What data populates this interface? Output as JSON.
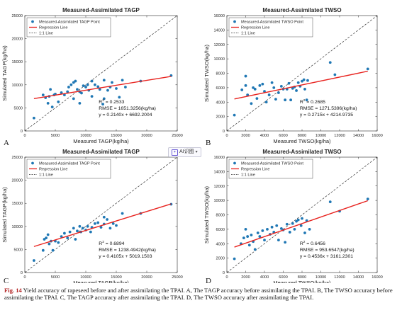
{
  "figure": {
    "panels": [
      {
        "letter": "A",
        "title": "Measured-Assimilated TAGP",
        "xlabel": "Measured TAGP(kg/ha)",
        "ylabel": "Simulated TAGP(kg/ha)",
        "legend": [
          "Measured-Assimilated TAGP Point",
          "Regression Line",
          "1:1 Line"
        ],
        "r2_prefix": "R",
        "r2_sup": "2",
        "r2_value": " = 0.2533",
        "rmse": "RMSE = 1651.3256(kg/ha)",
        "equation": "y = 0.2140x + 6692.2004"
      },
      {
        "letter": "B",
        "title": "Measured-Assimilated TWSO",
        "xlabel": "Measured TWSO(kg/ha)",
        "ylabel": "Simulated TWSO(kg/ha)",
        "legend": [
          "Measured-Assimilated TWSO Point",
          "Regression Line",
          "1:1 Line"
        ],
        "r2_prefix": "R",
        "r2_sup": "2",
        "r2_value": " = 0.2685",
        "rmse": "RMSE = 1271.5396(kg/ha)",
        "equation": "y = 0.2715x + 4214.9735"
      },
      {
        "letter": "C",
        "title": "Measured-Assimilated TAGP",
        "xlabel": "Measured TAGP(kg/ha)",
        "ylabel": "Simulated TAGP(kg/ha)",
        "legend": [
          "Measured-Assimilated TAGP Point",
          "Regression Line",
          "1:1 Line"
        ],
        "r2_prefix": "R",
        "r2_sup": "2",
        "r2_value": " = 0.6894",
        "rmse": "RMSE = 1238.4942(kg/ha)",
        "equation": "y = 0.4105x + 5019.1503"
      },
      {
        "letter": "D",
        "title": "Measured-Assimilated TWSO",
        "xlabel": "Measured TWSO(kg/ha)",
        "ylabel": "Simulated TWSO(kg/ha)",
        "legend": [
          "Measured-Assimilated TWSO Point",
          "Regression Line",
          "1:1 Line"
        ],
        "r2_prefix": "R",
        "r2_sup": "2",
        "r2_value": " = 0.6456",
        "rmse": "RMSE = 953.6547(kg/ha)",
        "equation": "y = 0.4536x + 3161.2301"
      }
    ]
  },
  "chart_data": [
    {
      "type": "scatter",
      "title": "Measured-Assimilated TAGP",
      "xlabel": "Measured TAGP(kg/ha)",
      "ylabel": "Simulated TAGP(kg/ha)",
      "xlim": [
        0,
        25000
      ],
      "ylim": [
        0,
        25000
      ],
      "xticks": [
        0,
        5000,
        10000,
        15000,
        20000,
        25000
      ],
      "yticks": [
        0,
        5000,
        10000,
        15000,
        20000,
        25000
      ],
      "regression": {
        "slope": 0.214,
        "intercept": 6692.2004,
        "x_range": [
          1500,
          24000
        ],
        "color": "#e8231f"
      },
      "one_to_one": true,
      "point_color": "#1f77b4",
      "points": [
        [
          1500,
          2800
        ],
        [
          3000,
          7800
        ],
        [
          3400,
          7200
        ],
        [
          3800,
          6000
        ],
        [
          4000,
          7500
        ],
        [
          4200,
          9000
        ],
        [
          4500,
          5200
        ],
        [
          4800,
          7800
        ],
        [
          5000,
          8000
        ],
        [
          5500,
          6300
        ],
        [
          6000,
          8300
        ],
        [
          6500,
          7800
        ],
        [
          7000,
          8500
        ],
        [
          7200,
          9500
        ],
        [
          7600,
          10000
        ],
        [
          8000,
          10500
        ],
        [
          8000,
          7000
        ],
        [
          8300,
          10800
        ],
        [
          8600,
          9000
        ],
        [
          9000,
          6000
        ],
        [
          9000,
          8500
        ],
        [
          9300,
          8200
        ],
        [
          9600,
          9800
        ],
        [
          10000,
          9500
        ],
        [
          10300,
          10000
        ],
        [
          10500,
          8800
        ],
        [
          11000,
          7500
        ],
        [
          11000,
          10800
        ],
        [
          11500,
          10000
        ],
        [
          12000,
          9600
        ],
        [
          12300,
          9000
        ],
        [
          12800,
          5800
        ],
        [
          13000,
          11000
        ],
        [
          13000,
          7000
        ],
        [
          13600,
          8800
        ],
        [
          14000,
          9500
        ],
        [
          14300,
          10500
        ],
        [
          15000,
          9200
        ],
        [
          15500,
          7300
        ],
        [
          16000,
          11000
        ],
        [
          16500,
          9500
        ],
        [
          19000,
          10800
        ],
        [
          24000,
          12000
        ]
      ]
    },
    {
      "type": "scatter",
      "title": "Measured-Assimilated TWSO",
      "xlabel": "Measured TWSO(kg/ha)",
      "ylabel": "Simulated TWSO(kg/ha)",
      "xlim": [
        0,
        16000
      ],
      "ylim": [
        0,
        16000
      ],
      "xticks": [
        0,
        2000,
        4000,
        6000,
        8000,
        10000,
        12000,
        14000,
        16000
      ],
      "yticks": [
        0,
        2000,
        4000,
        6000,
        8000,
        10000,
        12000,
        14000,
        16000
      ],
      "regression": {
        "slope": 0.2715,
        "intercept": 4214.9735,
        "x_range": [
          800,
          15000
        ],
        "color": "#e8231f"
      },
      "one_to_one": true,
      "point_color": "#1f77b4",
      "points": [
        [
          800,
          2200
        ],
        [
          1600,
          5700
        ],
        [
          2000,
          7600
        ],
        [
          2000,
          6300
        ],
        [
          2200,
          5000
        ],
        [
          2600,
          3800
        ],
        [
          2800,
          6000
        ],
        [
          3000,
          5800
        ],
        [
          3200,
          4500
        ],
        [
          3500,
          6300
        ],
        [
          3800,
          6500
        ],
        [
          4000,
          5500
        ],
        [
          4200,
          4000
        ],
        [
          4500,
          5000
        ],
        [
          4800,
          6700
        ],
        [
          5000,
          6000
        ],
        [
          5200,
          4400
        ],
        [
          5500,
          5300
        ],
        [
          5800,
          6200
        ],
        [
          6000,
          5800
        ],
        [
          6200,
          4300
        ],
        [
          6400,
          5800
        ],
        [
          6600,
          6600
        ],
        [
          6800,
          4300
        ],
        [
          7000,
          5900
        ],
        [
          7200,
          6100
        ],
        [
          7400,
          5600
        ],
        [
          7600,
          6700
        ],
        [
          7800,
          6200
        ],
        [
          8000,
          6900
        ],
        [
          8200,
          7100
        ],
        [
          8300,
          5800
        ],
        [
          8500,
          4300
        ],
        [
          8600,
          7000
        ],
        [
          11000,
          9500
        ],
        [
          11500,
          7800
        ],
        [
          15000,
          8600
        ]
      ]
    },
    {
      "type": "scatter",
      "title": "Measured-Assimilated TAGP",
      "xlabel": "Measured TAGP(kg/ha)",
      "ylabel": "Simulated TAGP(kg/ha)",
      "xlim": [
        0,
        25000
      ],
      "ylim": [
        0,
        25000
      ],
      "xticks": [
        0,
        5000,
        10000,
        15000,
        20000,
        25000
      ],
      "yticks": [
        0,
        5000,
        10000,
        15000,
        20000,
        25000
      ],
      "regression": {
        "slope": 0.4105,
        "intercept": 5019.1503,
        "x_range": [
          1500,
          24000
        ],
        "color": "#e8231f"
      },
      "one_to_one": true,
      "point_color": "#1f77b4",
      "points": [
        [
          1500,
          2600
        ],
        [
          3000,
          4800
        ],
        [
          3200,
          7200
        ],
        [
          3500,
          7500
        ],
        [
          3800,
          8200
        ],
        [
          4000,
          6200
        ],
        [
          4300,
          6800
        ],
        [
          4600,
          4800
        ],
        [
          5000,
          6800
        ],
        [
          5500,
          6500
        ],
        [
          6000,
          7800
        ],
        [
          6500,
          8500
        ],
        [
          7000,
          7500
        ],
        [
          7400,
          8800
        ],
        [
          8000,
          9600
        ],
        [
          8300,
          7200
        ],
        [
          8600,
          9000
        ],
        [
          9000,
          10000
        ],
        [
          9200,
          8800
        ],
        [
          9500,
          9600
        ],
        [
          10000,
          9200
        ],
        [
          10300,
          10000
        ],
        [
          10800,
          8800
        ],
        [
          11000,
          9800
        ],
        [
          11500,
          10600
        ],
        [
          12000,
          10800
        ],
        [
          12500,
          9800
        ],
        [
          13000,
          12000
        ],
        [
          13000,
          10500
        ],
        [
          13500,
          11500
        ],
        [
          14000,
          9600
        ],
        [
          14500,
          10600
        ],
        [
          15000,
          10200
        ],
        [
          16000,
          12800
        ],
        [
          19000,
          12800
        ],
        [
          24000,
          14800
        ]
      ]
    },
    {
      "type": "scatter",
      "title": "Measured-Assimilated TWSO",
      "xlabel": "Measured TWSO(kg/ha)",
      "ylabel": "Simulated TWSO(kg/ha)",
      "xlim": [
        0,
        16000
      ],
      "ylim": [
        0,
        16000
      ],
      "xticks": [
        0,
        2000,
        4000,
        6000,
        8000,
        10000,
        12000,
        14000,
        16000
      ],
      "yticks": [
        0,
        2000,
        4000,
        6000,
        8000,
        10000,
        12000,
        14000,
        16000
      ],
      "regression": {
        "slope": 0.4536,
        "intercept": 3161.2301,
        "x_range": [
          800,
          15000
        ],
        "color": "#e8231f"
      },
      "one_to_one": true,
      "point_color": "#1f77b4",
      "points": [
        [
          800,
          1900
        ],
        [
          1500,
          4000
        ],
        [
          1800,
          4800
        ],
        [
          2000,
          6000
        ],
        [
          2200,
          5000
        ],
        [
          2400,
          3800
        ],
        [
          2600,
          5200
        ],
        [
          2800,
          4300
        ],
        [
          3000,
          3200
        ],
        [
          3300,
          5500
        ],
        [
          3500,
          5000
        ],
        [
          3800,
          5800
        ],
        [
          4000,
          4500
        ],
        [
          4300,
          6000
        ],
        [
          4600,
          5300
        ],
        [
          4800,
          6300
        ],
        [
          5000,
          5600
        ],
        [
          5300,
          6500
        ],
        [
          5500,
          4500
        ],
        [
          5800,
          6100
        ],
        [
          6000,
          5900
        ],
        [
          6200,
          4200
        ],
        [
          6400,
          6700
        ],
        [
          6700,
          5600
        ],
        [
          7000,
          6800
        ],
        [
          7200,
          6000
        ],
        [
          7400,
          7100
        ],
        [
          7600,
          7300
        ],
        [
          7900,
          6500
        ],
        [
          8000,
          7500
        ],
        [
          8300,
          5500
        ],
        [
          8500,
          7200
        ],
        [
          8800,
          6000
        ],
        [
          11000,
          9800
        ],
        [
          12000,
          8500
        ],
        [
          15000,
          10200
        ]
      ]
    }
  ],
  "ai_chip": {
    "icon": "ai-sparkle-icon",
    "label": "AI识图",
    "caret": "▾"
  },
  "caption": {
    "label": "Fig. 14",
    "text": "  Yield accuracy of rapeseed before and after assimilating the TPAI.  A, The TAGP accuracy before assimilating the TPAI.  B, The TWSO accuracy before assimilating the TPAI.  C, The TAGP accuracy after assimilating the TPAI.  D, The TWSO accuracy after assimilating the TPAI."
  }
}
